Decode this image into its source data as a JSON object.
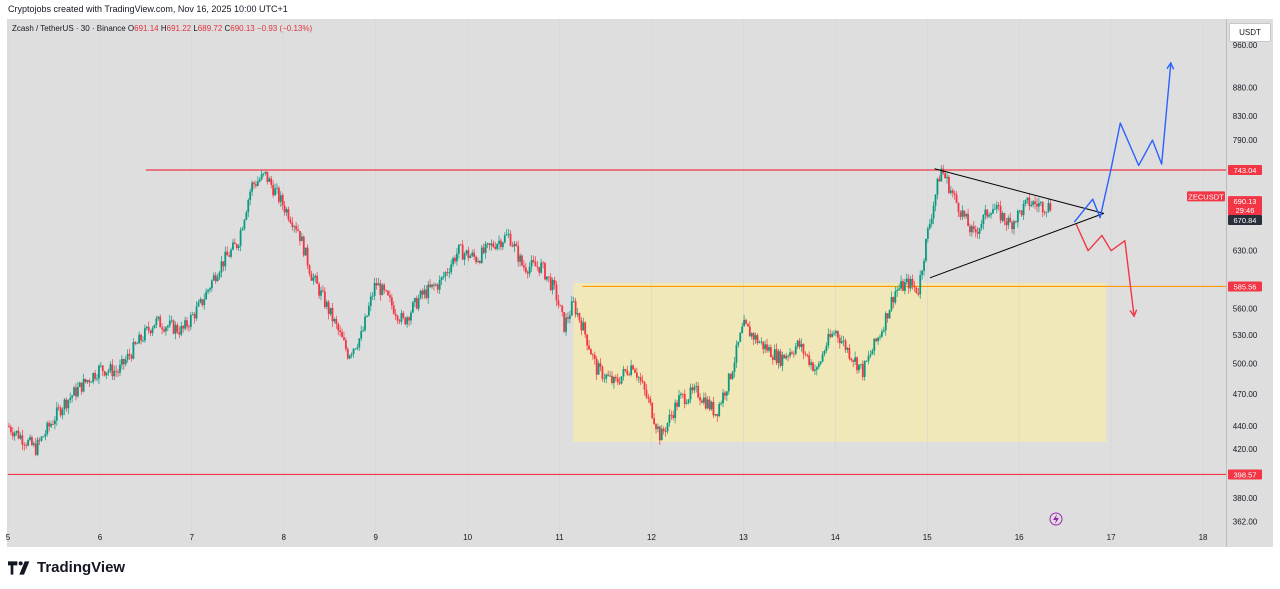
{
  "header": {
    "attribution": "Cryptojobs created with TradingView.com, Nov 16, 2025 10:00 UTC+1",
    "symbol_line": "Zcash / TetherUS · 30 · Binance",
    "o_label": "O",
    "o_value": "691.14",
    "h_label": "H",
    "h_value": "691.22",
    "l_label": "L",
    "l_value": "689.72",
    "c_label": "C",
    "c_value": "690.13",
    "change": "−0.93 (−0.13%)"
  },
  "currency_button": "USDT",
  "footer": {
    "brand": "TradingView"
  },
  "colors": {
    "up": "#089981",
    "down": "#f23645",
    "resistance": "#f23645",
    "range_line": "#ff9800",
    "range_box": "#f3eab2",
    "bullish_path": "#2962ff",
    "bearish_path": "#f23645",
    "triangle": "#000000"
  },
  "chart_data": {
    "type": "candlestick",
    "symbol": "ZECUSDT",
    "interval": "30",
    "y_scale": "log",
    "ylim": [
      345,
      1010
    ],
    "xlim": [
      5,
      18.25
    ],
    "x_ticks": [
      "5",
      "6",
      "7",
      "8",
      "9",
      "10",
      "11",
      "12",
      "13",
      "14",
      "15",
      "16",
      "17",
      "18"
    ],
    "y_ticks": [
      "960.00",
      "880.00",
      "830.00",
      "790.00",
      "630.00",
      "560.00",
      "530.00",
      "500.00",
      "470.00",
      "440.00",
      "420.00",
      "380.00",
      "362.00"
    ],
    "price_labels": [
      {
        "text": "743.04",
        "value": 743.04,
        "kind": "line"
      },
      {
        "text": "ZECUSDT",
        "value": 704,
        "kind": "symbol"
      },
      {
        "text": "690.13",
        "value": 690.13,
        "kind": "last"
      },
      {
        "text": "29:46",
        "value": 690.13,
        "kind": "countdown"
      },
      {
        "text": "670.84",
        "value": 670.84,
        "kind": "dark"
      },
      {
        "text": "585.56",
        "value": 585.56,
        "kind": "line"
      },
      {
        "text": "398.57",
        "value": 398.57,
        "kind": "line"
      }
    ],
    "price_path": [
      [
        5.0,
        440
      ],
      [
        5.3,
        420
      ],
      [
        5.6,
        460
      ],
      [
        5.8,
        478
      ],
      [
        6.0,
        495
      ],
      [
        6.2,
        492
      ],
      [
        6.4,
        520
      ],
      [
        6.6,
        545
      ],
      [
        6.9,
        535
      ],
      [
        7.1,
        565
      ],
      [
        7.3,
        610
      ],
      [
        7.5,
        640
      ],
      [
        7.65,
        720
      ],
      [
        7.8,
        735
      ],
      [
        8.0,
        690
      ],
      [
        8.15,
        660
      ],
      [
        8.3,
        600
      ],
      [
        8.5,
        555
      ],
      [
        8.7,
        510
      ],
      [
        8.85,
        530
      ],
      [
        9.0,
        590
      ],
      [
        9.2,
        560
      ],
      [
        9.3,
        545
      ],
      [
        9.5,
        575
      ],
      [
        9.7,
        590
      ],
      [
        9.9,
        630
      ],
      [
        10.1,
        620
      ],
      [
        10.3,
        640
      ],
      [
        10.45,
        650
      ],
      [
        10.6,
        610
      ],
      [
        10.8,
        610
      ],
      [
        10.95,
        580
      ],
      [
        11.05,
        540
      ],
      [
        11.15,
        565
      ],
      [
        11.25,
        540
      ],
      [
        11.4,
        495
      ],
      [
        11.6,
        480
      ],
      [
        11.8,
        500
      ],
      [
        12.0,
        455
      ],
      [
        12.1,
        430
      ],
      [
        12.3,
        465
      ],
      [
        12.5,
        472
      ],
      [
        12.7,
        452
      ],
      [
        12.85,
        485
      ],
      [
        13.0,
        540
      ],
      [
        13.2,
        520
      ],
      [
        13.4,
        505
      ],
      [
        13.6,
        520
      ],
      [
        13.8,
        492
      ],
      [
        13.9,
        520
      ],
      [
        14.0,
        535
      ],
      [
        14.15,
        512
      ],
      [
        14.3,
        492
      ],
      [
        14.5,
        535
      ],
      [
        14.65,
        580
      ],
      [
        14.8,
        590
      ],
      [
        14.9,
        580
      ],
      [
        15.0,
        650
      ],
      [
        15.15,
        745
      ],
      [
        15.3,
        700
      ],
      [
        15.5,
        650
      ],
      [
        15.7,
        690
      ],
      [
        15.9,
        665
      ],
      [
        16.1,
        695
      ],
      [
        16.3,
        690
      ],
      [
        16.35,
        690.13
      ]
    ],
    "annotations": {
      "resistance": {
        "price": 743.04,
        "x_start": 6.5,
        "x_end": 18.25
      },
      "range_top": {
        "price": 585.56,
        "x_start": 11.25,
        "x_end": 18.25
      },
      "support": {
        "price": 398.57,
        "x_start": 5.0,
        "x_end": 18.25
      },
      "range_box": {
        "x": [
          11.15,
          16.95
        ],
        "price": [
          426,
          590
        ]
      },
      "triangle": {
        "apex": [
          16.92,
          680
        ],
        "top_start": [
          15.08,
          745
        ],
        "bottom_start": [
          15.03,
          596
        ]
      },
      "bullish_path": [
        [
          16.6,
          668
        ],
        [
          16.8,
          700
        ],
        [
          16.88,
          674
        ],
        [
          17.0,
          745
        ],
        [
          17.1,
          818
        ],
        [
          17.3,
          750
        ],
        [
          17.45,
          790
        ],
        [
          17.55,
          752
        ],
        [
          17.65,
          925
        ]
      ],
      "bearish_path": [
        [
          16.62,
          665
        ],
        [
          16.75,
          630
        ],
        [
          16.9,
          650
        ],
        [
          17.0,
          630
        ],
        [
          17.15,
          643
        ],
        [
          17.25,
          551
        ]
      ]
    }
  }
}
